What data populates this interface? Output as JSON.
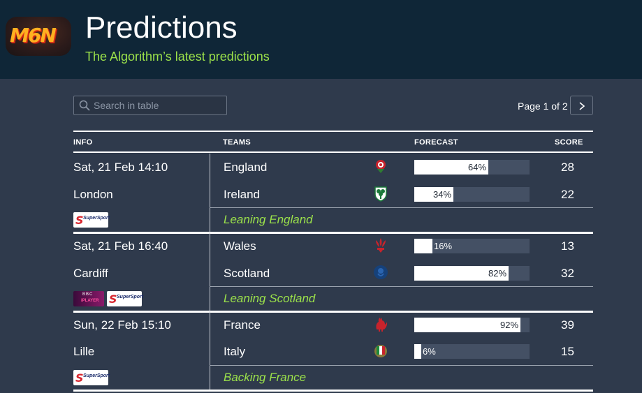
{
  "header": {
    "logo_text": "M6N",
    "title": "Predictions",
    "subtitle": "The Algorithm’s latest predictions"
  },
  "search": {
    "placeholder": "Search in table",
    "value": ""
  },
  "pagination": {
    "label": "Page 1 of 2"
  },
  "columns": {
    "info": "INFO",
    "teams": "TEAMS",
    "forecast": "FORECAST",
    "score": "SCORE"
  },
  "matches": [
    {
      "date": "Sat, 21 Feb 14:10",
      "venue": "London",
      "home": {
        "team": "England",
        "forecast_pct": 64,
        "forecast_label": "64%",
        "score": "28",
        "crest": "rose-icon"
      },
      "away": {
        "team": "Ireland",
        "forecast_pct": 34,
        "forecast_label": "34%",
        "score": "22",
        "crest": "shamrock-icon"
      },
      "verdict": "Leaning England",
      "broadcasters": [
        {
          "name": "SuperSport",
          "tag": "SuperSport",
          "s": "S"
        }
      ]
    },
    {
      "date": "Sat, 21 Feb 16:40",
      "venue": "Cardiff",
      "home": {
        "team": "Wales",
        "forecast_pct": 16,
        "forecast_label": "16%",
        "score": "13",
        "crest": "feathers-icon"
      },
      "away": {
        "team": "Scotland",
        "forecast_pct": 82,
        "forecast_label": "82%",
        "score": "32",
        "crest": "thistle-icon"
      },
      "verdict": "Leaning Scotland",
      "broadcasters": [
        {
          "name": "BBC iPlayer",
          "t1": "BBC",
          "t2": "iPLAYER"
        },
        {
          "name": "SuperSport",
          "tag": "SuperSport",
          "s": "S"
        }
      ]
    },
    {
      "date": "Sun, 22 Feb 15:10",
      "venue": "Lille",
      "home": {
        "team": "France",
        "forecast_pct": 92,
        "forecast_label": "92%",
        "score": "39",
        "crest": "rooster-icon"
      },
      "away": {
        "team": "Italy",
        "forecast_pct": 6,
        "forecast_label": "6%",
        "score": "15",
        "crest": "italy-shield-icon"
      },
      "verdict": "Backing France",
      "broadcasters": [
        {
          "name": "SuperSport",
          "tag": "SuperSport",
          "s": "S"
        }
      ]
    }
  ],
  "colors": {
    "accent_green": "#9be14a",
    "header_bg": "#0f2637",
    "body_bg": "#2f3a4c",
    "bar_track": "#445064"
  }
}
